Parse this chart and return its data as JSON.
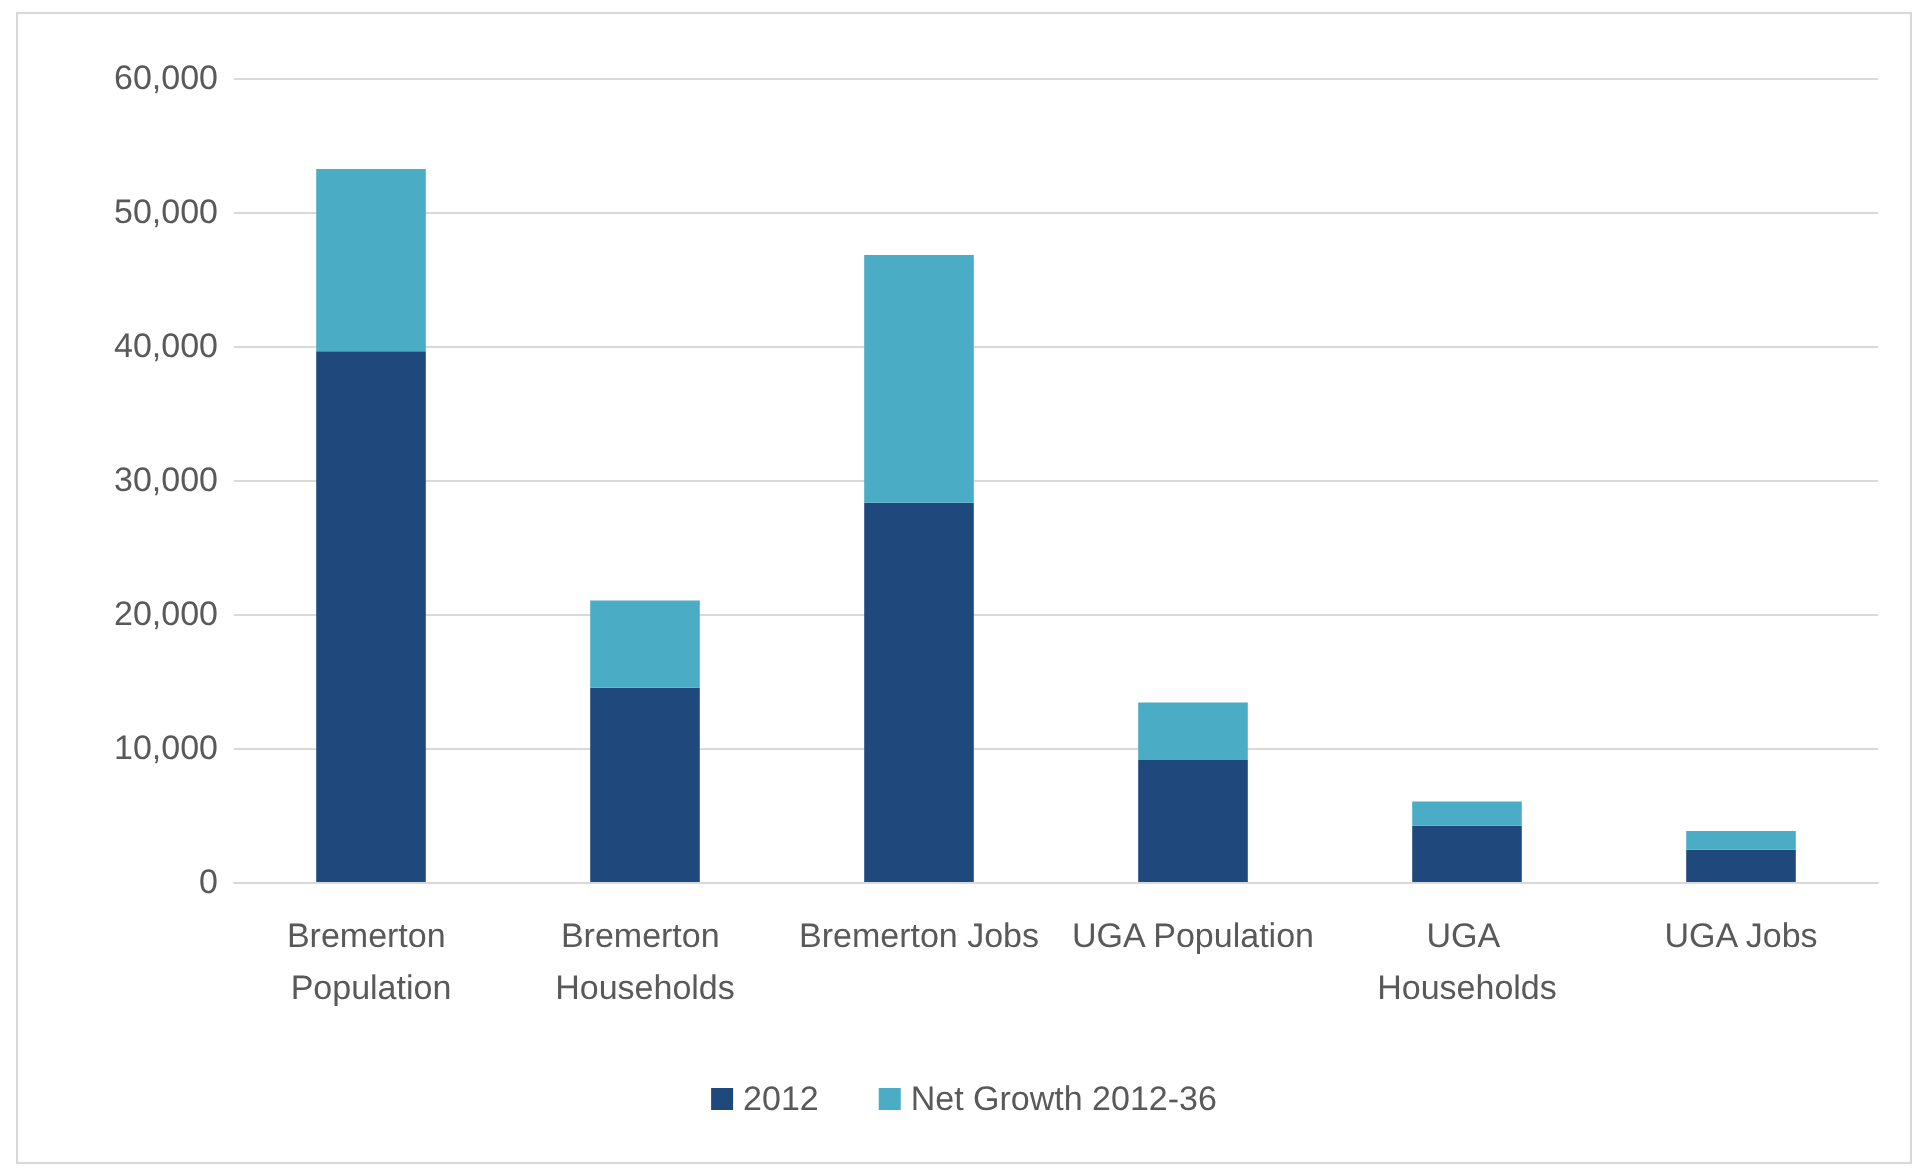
{
  "chart_data": {
    "type": "bar",
    "stacked": true,
    "categories": [
      "Bremerton Population",
      "Bremerton Households",
      "Bremerton Jobs",
      "UGA Population",
      "UGA Households",
      "UGA Jobs"
    ],
    "series": [
      {
        "name": "2012",
        "color": "#1f497d",
        "values": [
          39600,
          14500,
          28300,
          9100,
          4200,
          2400
        ]
      },
      {
        "name": "Net Growth 2012-36",
        "color": "#4bacc6",
        "values": [
          13600,
          6500,
          18500,
          4300,
          1800,
          1400
        ]
      }
    ],
    "ylim": [
      0,
      60000
    ],
    "yticks": [
      {
        "value": 0,
        "label": "0"
      },
      {
        "value": 10000,
        "label": "10,000"
      },
      {
        "value": 20000,
        "label": "20,000"
      },
      {
        "value": 30000,
        "label": "30,000"
      },
      {
        "value": 40000,
        "label": "40,000"
      },
      {
        "value": 50000,
        "label": "50,000"
      },
      {
        "value": 60000,
        "label": "60,000"
      }
    ],
    "grid": "y",
    "legend": "bottom"
  }
}
